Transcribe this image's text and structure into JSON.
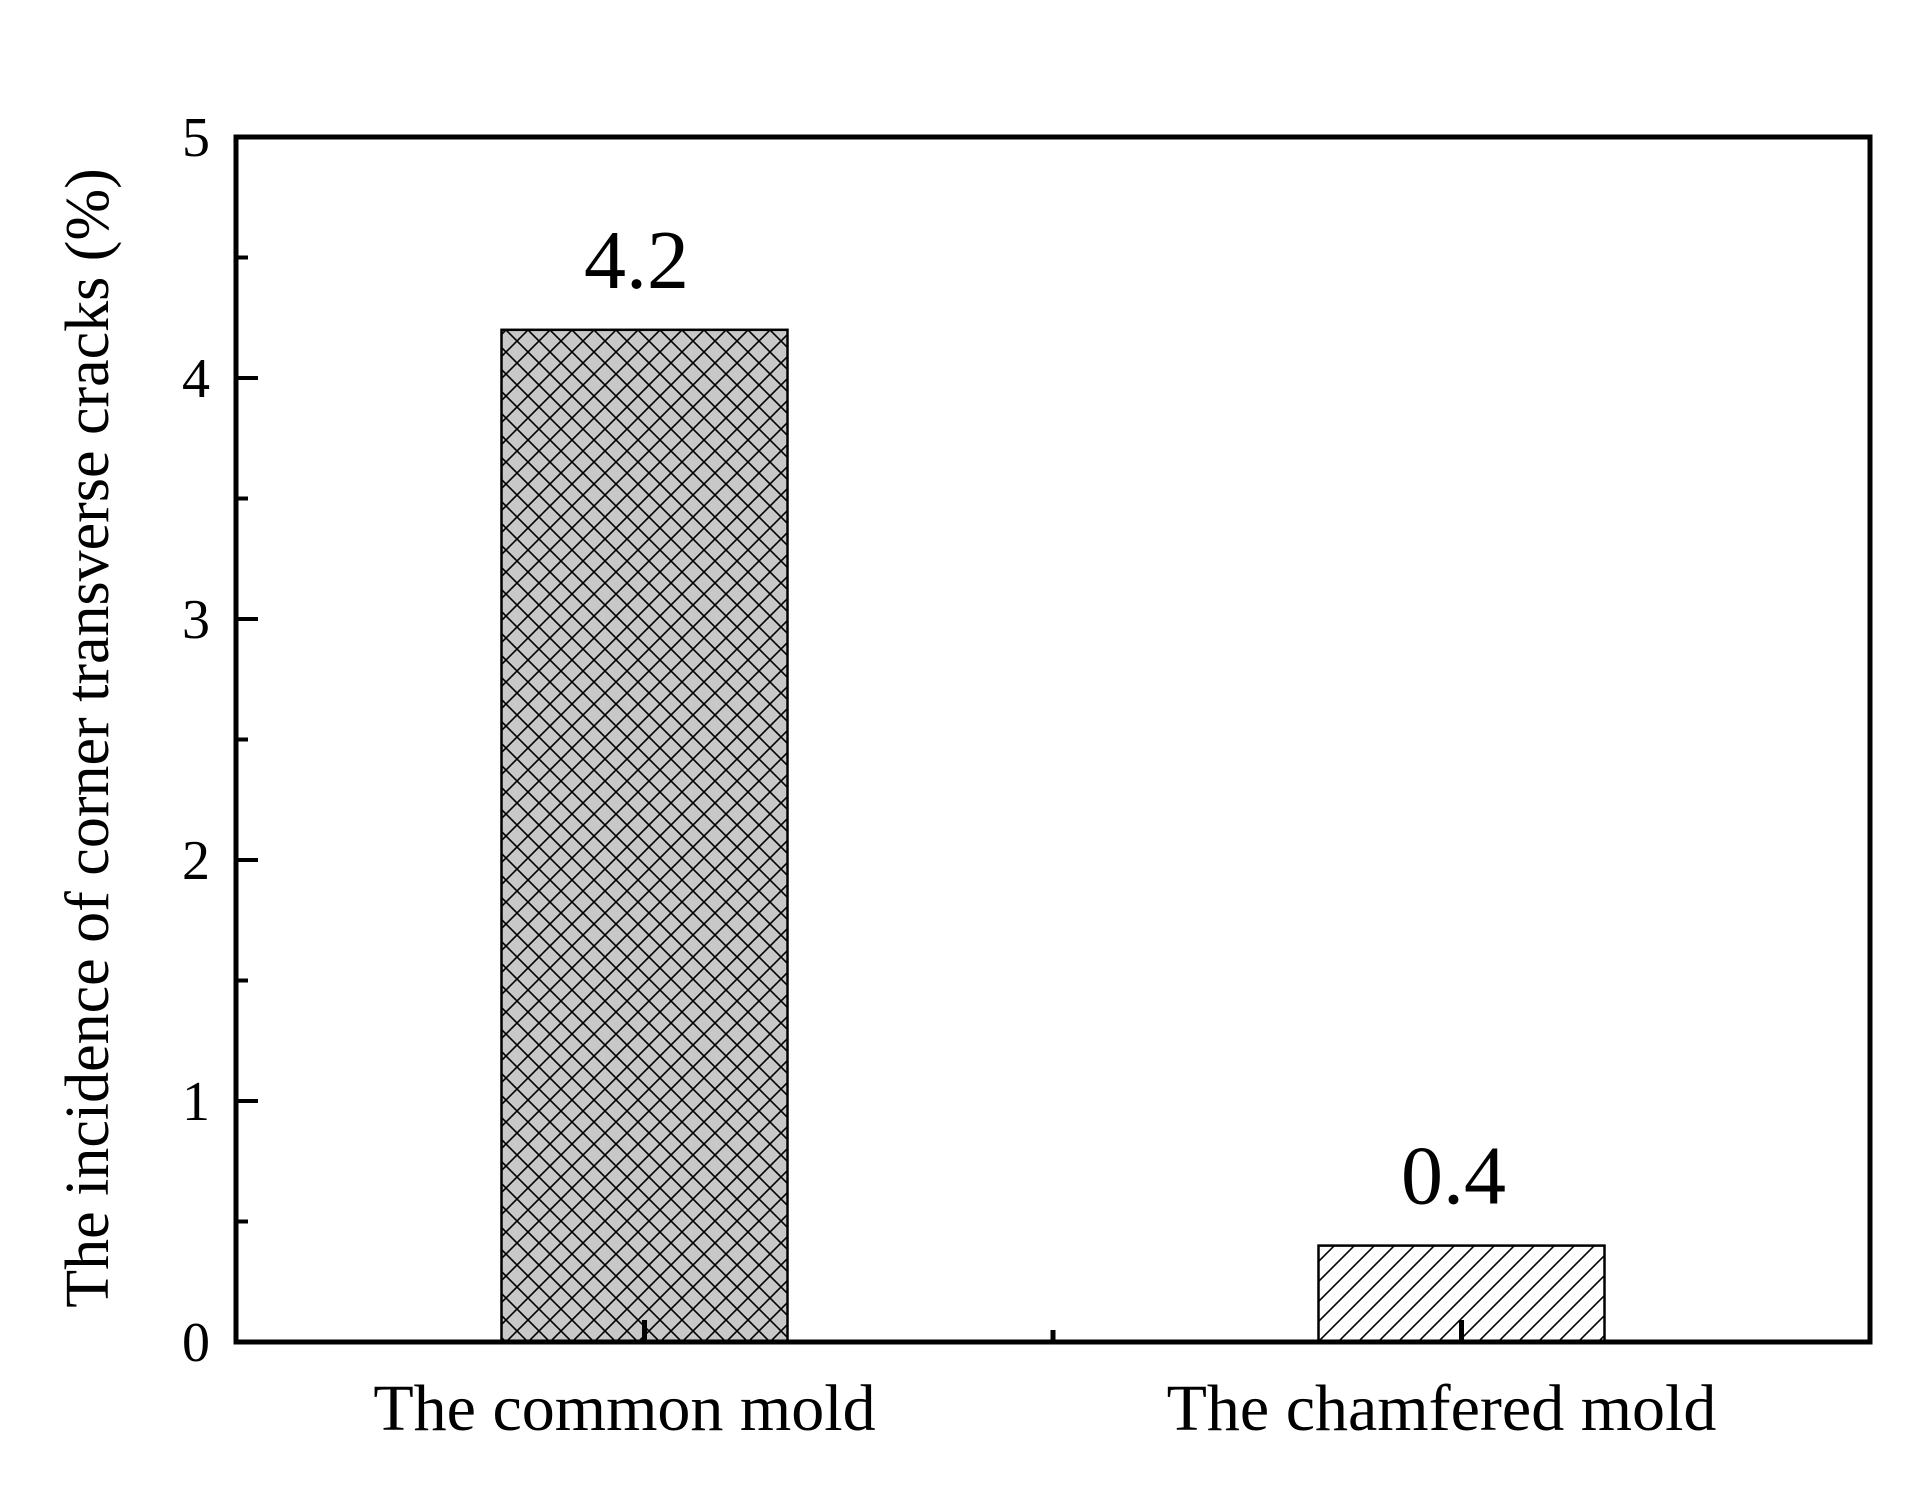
{
  "chart_data": {
    "type": "bar",
    "categories": [
      "The common mold",
      "The chamfered mold"
    ],
    "values": [
      4.2,
      0.4
    ],
    "data_labels": [
      "4.2",
      "0.4"
    ],
    "title": "",
    "xlabel": "",
    "ylabel": "The incidence of corner transverse cracks (%)",
    "ylim": [
      0,
      5
    ],
    "yticks": [
      0,
      1,
      2,
      3,
      4,
      5
    ],
    "ytick_labels": [
      "0",
      "1",
      "2",
      "3",
      "4",
      "5"
    ],
    "y_minor_step": 0.5,
    "grid": false,
    "legend": "none",
    "bar_fills": [
      "crosshatch",
      "diagonal-hatch"
    ],
    "colors": {
      "bar1_background": "#c8c8c8",
      "bar2_background": "#ffffff",
      "hatch": "#000000",
      "axis": "#000000"
    }
  }
}
